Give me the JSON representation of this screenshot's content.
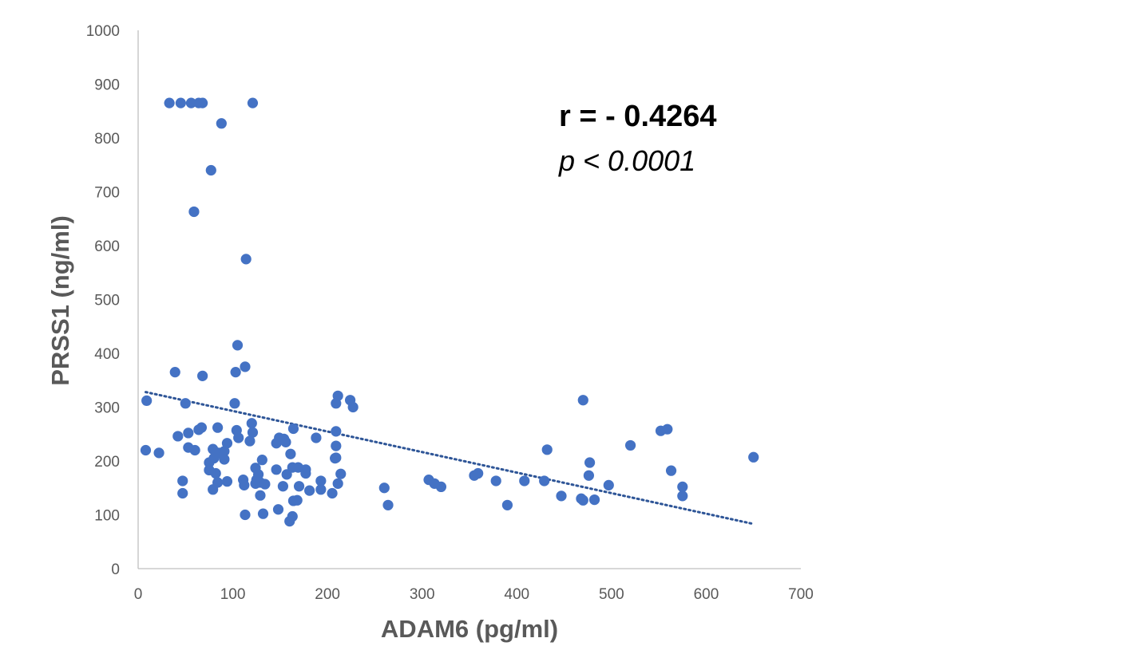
{
  "chart_data": {
    "type": "scatter",
    "xlabel": "ADAM6 (pg/ml)",
    "ylabel": "PRSS1 (ng/ml)",
    "xlim": [
      0,
      700
    ],
    "ylim": [
      0,
      1000
    ],
    "x_ticks": [
      "0",
      "100",
      "200",
      "300",
      "400",
      "500",
      "600",
      "700"
    ],
    "y_ticks": [
      "0",
      "100",
      "200",
      "300",
      "400",
      "500",
      "600",
      "700",
      "800",
      "900",
      "1000"
    ],
    "grid": false,
    "legend": "none",
    "marker_color": "#4472C4",
    "trendline": {
      "style": "dotted",
      "color": "#2E5597",
      "x": [
        8,
        650
      ],
      "y": [
        328,
        83
      ]
    },
    "annotations": {
      "r_text": "r = - 0.4264",
      "p_text": "p < 0.0001"
    },
    "points": [
      [
        33,
        865
      ],
      [
        45,
        865
      ],
      [
        56,
        865
      ],
      [
        64,
        865
      ],
      [
        68,
        865
      ],
      [
        121,
        865
      ],
      [
        88,
        827
      ],
      [
        77,
        740
      ],
      [
        59,
        663
      ],
      [
        114,
        575
      ],
      [
        105,
        415
      ],
      [
        113,
        375
      ],
      [
        39,
        365
      ],
      [
        68,
        358
      ],
      [
        103,
        365
      ],
      [
        9,
        312
      ],
      [
        50,
        307
      ],
      [
        102,
        307
      ],
      [
        211,
        321
      ],
      [
        224,
        313
      ],
      [
        227,
        300
      ],
      [
        209,
        307
      ],
      [
        470,
        313
      ],
      [
        53,
        252
      ],
      [
        42,
        246
      ],
      [
        64,
        258
      ],
      [
        67,
        262
      ],
      [
        84,
        262
      ],
      [
        104,
        257
      ],
      [
        106,
        243
      ],
      [
        94,
        233
      ],
      [
        118,
        237
      ],
      [
        120,
        270
      ],
      [
        121,
        253
      ],
      [
        146,
        233
      ],
      [
        149,
        243
      ],
      [
        154,
        241
      ],
      [
        156,
        235
      ],
      [
        164,
        260
      ],
      [
        188,
        243
      ],
      [
        209,
        255
      ],
      [
        209,
        228
      ],
      [
        8,
        220
      ],
      [
        22,
        215
      ],
      [
        53,
        225
      ],
      [
        60,
        220
      ],
      [
        75,
        197
      ],
      [
        79,
        222
      ],
      [
        80,
        205
      ],
      [
        85,
        215
      ],
      [
        91,
        218
      ],
      [
        91,
        203
      ],
      [
        75,
        183
      ],
      [
        82,
        177
      ],
      [
        124,
        187
      ],
      [
        127,
        175
      ],
      [
        131,
        202
      ],
      [
        146,
        184
      ],
      [
        157,
        175
      ],
      [
        161,
        213
      ],
      [
        163,
        188
      ],
      [
        169,
        188
      ],
      [
        177,
        184
      ],
      [
        177,
        177
      ],
      [
        208,
        205
      ],
      [
        209,
        206
      ],
      [
        214,
        176
      ],
      [
        47,
        163
      ],
      [
        47,
        140
      ],
      [
        79,
        147
      ],
      [
        84,
        160
      ],
      [
        94,
        162
      ],
      [
        111,
        165
      ],
      [
        112,
        155
      ],
      [
        124,
        158
      ],
      [
        125,
        165
      ],
      [
        129,
        160
      ],
      [
        134,
        157
      ],
      [
        153,
        153
      ],
      [
        170,
        153
      ],
      [
        181,
        145
      ],
      [
        193,
        163
      ],
      [
        193,
        147
      ],
      [
        205,
        140
      ],
      [
        211,
        158
      ],
      [
        113,
        100
      ],
      [
        129,
        136
      ],
      [
        132,
        102
      ],
      [
        148,
        110
      ],
      [
        160,
        88
      ],
      [
        163,
        97
      ],
      [
        164,
        126
      ],
      [
        168,
        127
      ],
      [
        260,
        150
      ],
      [
        264,
        118
      ],
      [
        307,
        165
      ],
      [
        313,
        158
      ],
      [
        320,
        152
      ],
      [
        355,
        173
      ],
      [
        359,
        177
      ],
      [
        378,
        163
      ],
      [
        390,
        118
      ],
      [
        408,
        163
      ],
      [
        429,
        163
      ],
      [
        432,
        221
      ],
      [
        447,
        135
      ],
      [
        468,
        130
      ],
      [
        470,
        127
      ],
      [
        476,
        173
      ],
      [
        477,
        197
      ],
      [
        482,
        128
      ],
      [
        497,
        155
      ],
      [
        520,
        229
      ],
      [
        552,
        256
      ],
      [
        559,
        259
      ],
      [
        563,
        182
      ],
      [
        575,
        152
      ],
      [
        575,
        135
      ],
      [
        650,
        207
      ]
    ]
  }
}
